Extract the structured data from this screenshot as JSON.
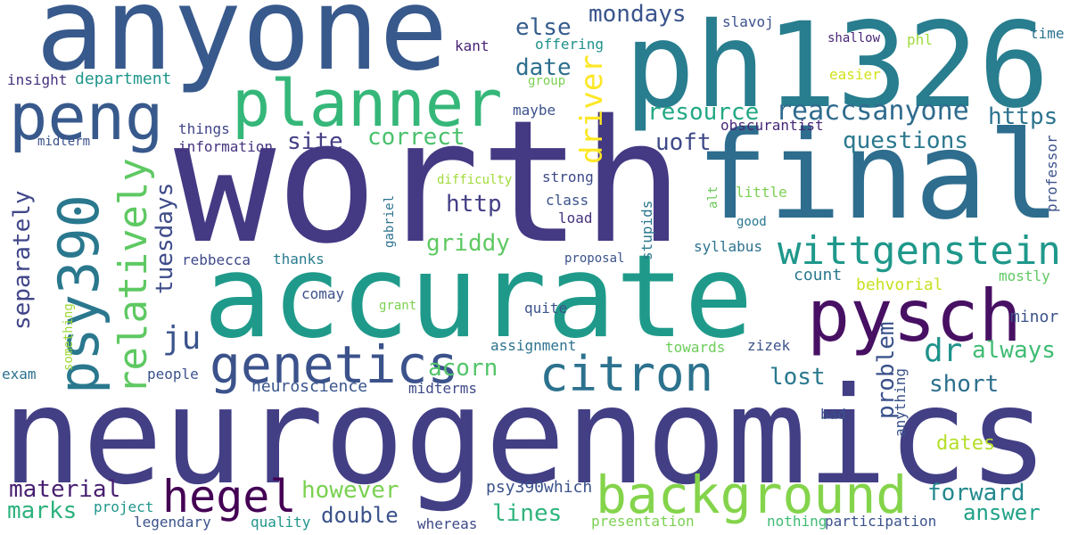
{
  "words": [
    {
      "text": "worth",
      "color": "#443983"
    },
    {
      "text": "neurogenomics",
      "color": "#423f85"
    },
    {
      "text": "accurate",
      "color": "#1f9a8a"
    },
    {
      "text": "anyone",
      "color": "#38598c"
    },
    {
      "text": "ph1326",
      "color": "#287d8e"
    },
    {
      "text": "final",
      "color": "#2e6d8e"
    },
    {
      "text": "pysch",
      "color": "#471063"
    },
    {
      "text": "planner",
      "color": "#35b779"
    },
    {
      "text": "peng",
      "color": "#38598c"
    },
    {
      "text": "background",
      "color": "#84d44b"
    },
    {
      "text": "psy390",
      "color": "#2a788e"
    },
    {
      "text": "genetics",
      "color": "#3b528b"
    },
    {
      "text": "citron",
      "color": "#2c728e"
    },
    {
      "text": "hegel",
      "color": "#440154"
    },
    {
      "text": "wittgenstein",
      "color": "#1f988b"
    },
    {
      "text": "relatively",
      "color": "#5ec962"
    },
    {
      "text": "reaccsanyone",
      "color": "#2f6b8e"
    },
    {
      "text": "driver",
      "color": "#fde725"
    },
    {
      "text": "ju",
      "color": "#3a548c"
    },
    {
      "text": "dr",
      "color": "#20928c"
    },
    {
      "text": "questions",
      "color": "#2a788e"
    },
    {
      "text": "separately",
      "color": "#404688"
    },
    {
      "text": "tuesdays",
      "color": "#3e4c8a"
    },
    {
      "text": "griddy",
      "color": "#5ec962"
    },
    {
      "text": "else",
      "color": "#365d8d"
    },
    {
      "text": "mondays",
      "color": "#3a548c"
    },
    {
      "text": "date",
      "color": "#2e6f8e"
    },
    {
      "text": "correct",
      "color": "#4ac16d"
    },
    {
      "text": "site",
      "color": "#433e85"
    },
    {
      "text": "resource",
      "color": "#22a884"
    },
    {
      "text": "https",
      "color": "#2c728e"
    },
    {
      "text": "uoft",
      "color": "#3e4989"
    },
    {
      "text": "http",
      "color": "#433e85"
    },
    {
      "text": "material",
      "color": "#481f70"
    },
    {
      "text": "marks",
      "color": "#2db27d"
    },
    {
      "text": "however",
      "color": "#7ad151"
    },
    {
      "text": "lost",
      "color": "#2a788e"
    },
    {
      "text": "short",
      "color": "#2d708e"
    },
    {
      "text": "problem",
      "color": "#3b528b"
    },
    {
      "text": "always",
      "color": "#3fbc73"
    },
    {
      "text": "acorn",
      "color": "#52c569"
    },
    {
      "text": "forward",
      "color": "#23898e"
    },
    {
      "text": "answer",
      "color": "#1fa187"
    },
    {
      "text": "lines",
      "color": "#2fb47c"
    },
    {
      "text": "double",
      "color": "#3b528b"
    },
    {
      "text": "dates",
      "color": "#b5de2b"
    },
    {
      "text": "neuroscience",
      "color": "#39568c"
    },
    {
      "text": "psy390which",
      "color": "#3b528b"
    },
    {
      "text": "count",
      "color": "#2a788e"
    },
    {
      "text": "behvorial",
      "color": "#c8e020"
    },
    {
      "text": "minor",
      "color": "#3b528b"
    },
    {
      "text": "mostly",
      "color": "#5ec962"
    },
    {
      "text": "department",
      "color": "#1f968b"
    },
    {
      "text": "insight",
      "color": "#46327e"
    },
    {
      "text": "kant",
      "color": "#482475"
    },
    {
      "text": "offering",
      "color": "#21918c"
    },
    {
      "text": "slavoj",
      "color": "#3b528b"
    },
    {
      "text": "shallow",
      "color": "#482576"
    },
    {
      "text": "time",
      "color": "#2c728e"
    },
    {
      "text": "phl",
      "color": "#a0da39"
    },
    {
      "text": "easier",
      "color": "#d2e21b"
    },
    {
      "text": "group",
      "color": "#7ad151"
    },
    {
      "text": "maybe",
      "color": "#3b528b"
    },
    {
      "text": "things",
      "color": "#404688"
    },
    {
      "text": "information",
      "color": "#46337f"
    },
    {
      "text": "midterm",
      "color": "#3b528b"
    },
    {
      "text": "obscurantist",
      "color": "#482878"
    },
    {
      "text": "professor",
      "color": "#3b528b"
    },
    {
      "text": "difficulty",
      "color": "#a0da39"
    },
    {
      "text": "strong",
      "color": "#3e4989"
    },
    {
      "text": "class",
      "color": "#3b528b"
    },
    {
      "text": "load",
      "color": "#46327e"
    },
    {
      "text": "gabriel",
      "color": "#2c728e"
    },
    {
      "text": "stupids",
      "color": "#2a788e"
    },
    {
      "text": "alt",
      "color": "#6ccd5a"
    },
    {
      "text": "little",
      "color": "#7ad151"
    },
    {
      "text": "good",
      "color": "#2a788e"
    },
    {
      "text": "syllabus",
      "color": "#2c728e"
    },
    {
      "text": "rebbecca",
      "color": "#3e4989"
    },
    {
      "text": "thanks",
      "color": "#287d8e"
    },
    {
      "text": "proposal",
      "color": "#3b528b"
    },
    {
      "text": "comay",
      "color": "#3b528b"
    },
    {
      "text": "grant",
      "color": "#7ad151"
    },
    {
      "text": "quite",
      "color": "#3b528b"
    },
    {
      "text": "assignment",
      "color": "#2c728e"
    },
    {
      "text": "towards",
      "color": "#6ccd5a"
    },
    {
      "text": "zizek",
      "color": "#3b528b"
    },
    {
      "text": "something",
      "color": "#a0da39"
    },
    {
      "text": "exam",
      "color": "#2c728e"
    },
    {
      "text": "people",
      "color": "#3b528b"
    },
    {
      "text": "midterms",
      "color": "#3e4989"
    },
    {
      "text": "anything",
      "color": "#3b528b"
    },
    {
      "text": "bad",
      "color": "#3b528b"
    },
    {
      "text": "project",
      "color": "#1f968b"
    },
    {
      "text": "legendary",
      "color": "#3b528b"
    },
    {
      "text": "quality",
      "color": "#1f968b"
    },
    {
      "text": "whereas",
      "color": "#3e4989"
    },
    {
      "text": "presentation",
      "color": "#7ad151"
    },
    {
      "text": "nothing",
      "color": "#3fbc73"
    },
    {
      "text": "participation",
      "color": "#3b528b"
    }
  ]
}
